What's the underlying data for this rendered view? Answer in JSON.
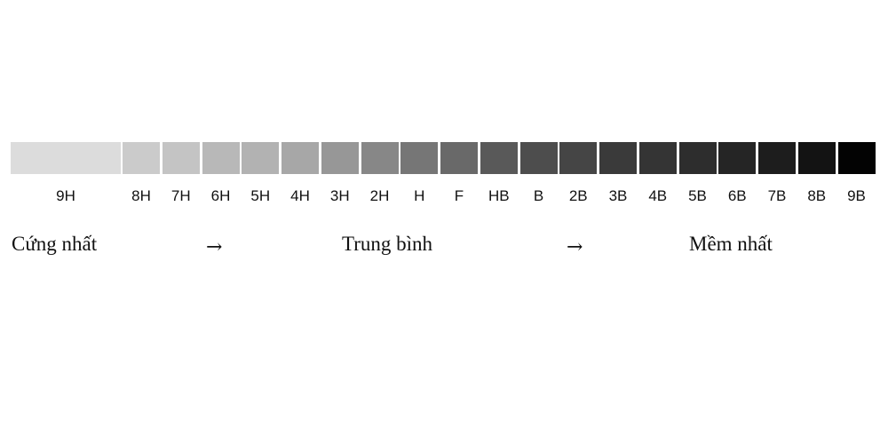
{
  "grades": [
    {
      "label": "9H",
      "color": "#dcdcdc"
    },
    {
      "label": "8H",
      "color": "#cbcbcb"
    },
    {
      "label": "7H",
      "color": "#c4c4c4"
    },
    {
      "label": "6H",
      "color": "#b8b8b8"
    },
    {
      "label": "5H",
      "color": "#b2b2b2"
    },
    {
      "label": "4H",
      "color": "#a7a7a7"
    },
    {
      "label": "3H",
      "color": "#979797"
    },
    {
      "label": "2H",
      "color": "#878787"
    },
    {
      "label": "H",
      "color": "#767676"
    },
    {
      "label": "F",
      "color": "#696969"
    },
    {
      "label": "HB",
      "color": "#595959"
    },
    {
      "label": "B",
      "color": "#4d4d4d"
    },
    {
      "label": "2B",
      "color": "#454545"
    },
    {
      "label": "3B",
      "color": "#3a3a3a"
    },
    {
      "label": "4B",
      "color": "#343434"
    },
    {
      "label": "5B",
      "color": "#2d2d2d"
    },
    {
      "label": "6B",
      "color": "#252525"
    },
    {
      "label": "7B",
      "color": "#1d1d1d"
    },
    {
      "label": "8B",
      "color": "#131313"
    },
    {
      "label": "9B",
      "color": "#030303"
    }
  ],
  "captions": {
    "hardest": "Cứng nhất",
    "arrow": "→",
    "medium": "Trung bình",
    "softest": "Mềm nhất"
  }
}
